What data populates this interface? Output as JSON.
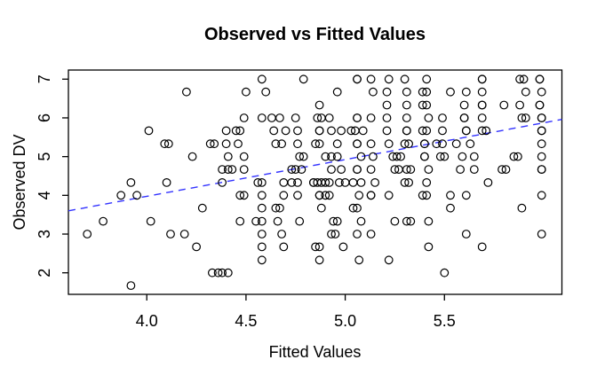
{
  "figure": {
    "background": "#ffffff",
    "frame_color": "#000000"
  },
  "chart_data": {
    "type": "scatter",
    "title": "Observed vs Fitted Values",
    "xlabel": "Fitted Values",
    "ylabel": "Observed DV",
    "xlim": [
      3.605,
      6.092
    ],
    "ylim": [
      1.444,
      7.235
    ],
    "x_ticks": [
      4.0,
      4.5,
      5.0,
      5.5
    ],
    "x_tick_labels": [
      "4.0",
      "4.5",
      "5.0",
      "5.5"
    ],
    "y_ticks": [
      2,
      3,
      4,
      5,
      6,
      7
    ],
    "y_tick_labels": [
      "2",
      "3",
      "4",
      "5",
      "6",
      "7"
    ],
    "grid": false,
    "legend": "none",
    "point_style": "open-circle",
    "point_color": "#000000",
    "frame_color": "#000000",
    "trend_line": {
      "style": "dashed",
      "color": "#3333FF",
      "points": [
        [
          3.605,
          3.6
        ],
        [
          6.092,
          5.96
        ]
      ]
    },
    "rows": [
      {
        "y": 7.0,
        "x": [
          4.58,
          4.79,
          5.06,
          5.06,
          5.13,
          5.22,
          5.3,
          5.41,
          5.69,
          5.69,
          5.88,
          5.9,
          5.98,
          5.98
        ]
      },
      {
        "y": 6.67,
        "x": [
          4.2,
          4.5,
          4.6,
          4.96,
          5.14,
          5.21,
          5.31,
          5.39,
          5.41,
          5.53,
          5.61,
          5.69,
          5.91,
          5.99
        ]
      },
      {
        "y": 6.33,
        "x": [
          4.87,
          5.21,
          5.31,
          5.39,
          5.41,
          5.6,
          5.69,
          5.69,
          5.8,
          5.88,
          5.98,
          5.98
        ]
      },
      {
        "y": 6.0,
        "x": [
          4.49,
          4.58,
          4.63,
          4.67,
          4.75,
          4.86,
          4.88,
          4.92,
          5.06,
          5.06,
          5.13,
          5.21,
          5.31,
          5.42,
          5.49,
          5.6,
          5.6,
          5.69,
          5.89,
          5.91,
          5.99,
          5.99
        ]
      },
      {
        "y": 5.67,
        "x": [
          4.01,
          4.4,
          4.45,
          4.47,
          4.64,
          4.7,
          4.76,
          4.87,
          4.87,
          4.93,
          4.98,
          5.03,
          5.05,
          5.09,
          5.21,
          5.31,
          5.31,
          5.39,
          5.41,
          5.49,
          5.61,
          5.61,
          5.69,
          5.71,
          5.99,
          5.99
        ]
      },
      {
        "y": 5.33,
        "x": [
          4.09,
          4.11,
          4.32,
          4.34,
          4.4,
          4.46,
          4.65,
          4.68,
          4.76,
          4.85,
          4.87,
          4.96,
          5.06,
          5.06,
          5.13,
          5.22,
          5.3,
          5.32,
          5.4,
          5.4,
          5.46,
          5.49,
          5.56,
          5.63,
          5.99
        ]
      },
      {
        "y": 5.0,
        "x": [
          4.23,
          4.41,
          4.49,
          4.77,
          4.79,
          4.9,
          4.93,
          4.96,
          5.08,
          5.14,
          5.24,
          5.26,
          5.28,
          5.4,
          5.4,
          5.48,
          5.5,
          5.59,
          5.65,
          5.85,
          5.87,
          5.99
        ]
      },
      {
        "y": 4.67,
        "x": [
          4.38,
          4.41,
          4.43,
          4.49,
          4.73,
          4.75,
          4.78,
          4.93,
          4.98,
          5.06,
          5.06,
          5.13,
          5.25,
          5.27,
          5.31,
          5.33,
          5.42,
          5.58,
          5.65,
          5.79,
          5.81,
          5.99,
          5.99
        ]
      },
      {
        "y": 4.33,
        "x": [
          3.92,
          4.1,
          4.38,
          4.56,
          4.58,
          4.69,
          4.73,
          4.76,
          4.84,
          4.84,
          4.86,
          4.88,
          4.9,
          4.92,
          4.97,
          5.0,
          5.04,
          5.08,
          5.15,
          5.3,
          5.32,
          5.41,
          5.72
        ]
      },
      {
        "y": 4.0,
        "x": [
          3.87,
          3.95,
          4.47,
          4.49,
          4.58,
          4.69,
          4.76,
          4.87,
          4.87,
          4.9,
          4.92,
          5.07,
          5.13,
          5.13,
          5.22,
          5.39,
          5.41,
          5.53,
          5.61,
          5.99
        ]
      },
      {
        "y": 3.67,
        "x": [
          4.28,
          4.58,
          4.65,
          4.67,
          4.88,
          5.04,
          5.06,
          5.53,
          5.89
        ]
      },
      {
        "y": 3.33,
        "x": [
          3.78,
          4.02,
          4.47,
          4.55,
          4.58,
          4.66,
          4.77,
          4.94,
          4.96,
          5.08,
          5.25,
          5.31,
          5.33,
          5.42
        ]
      },
      {
        "y": 3.0,
        "x": [
          3.7,
          4.12,
          4.19,
          4.58,
          4.68,
          4.93,
          4.95,
          5.06,
          5.13,
          5.61,
          5.99
        ]
      },
      {
        "y": 2.67,
        "x": [
          4.25,
          4.58,
          4.69,
          4.85,
          4.87,
          4.99,
          5.42,
          5.69
        ]
      },
      {
        "y": 2.33,
        "x": [
          4.58,
          4.87,
          5.07,
          5.22
        ]
      },
      {
        "y": 2.0,
        "x": [
          4.33,
          4.36,
          4.38,
          4.41,
          5.5
        ]
      },
      {
        "y": 1.67,
        "x": [
          3.92
        ]
      }
    ]
  }
}
